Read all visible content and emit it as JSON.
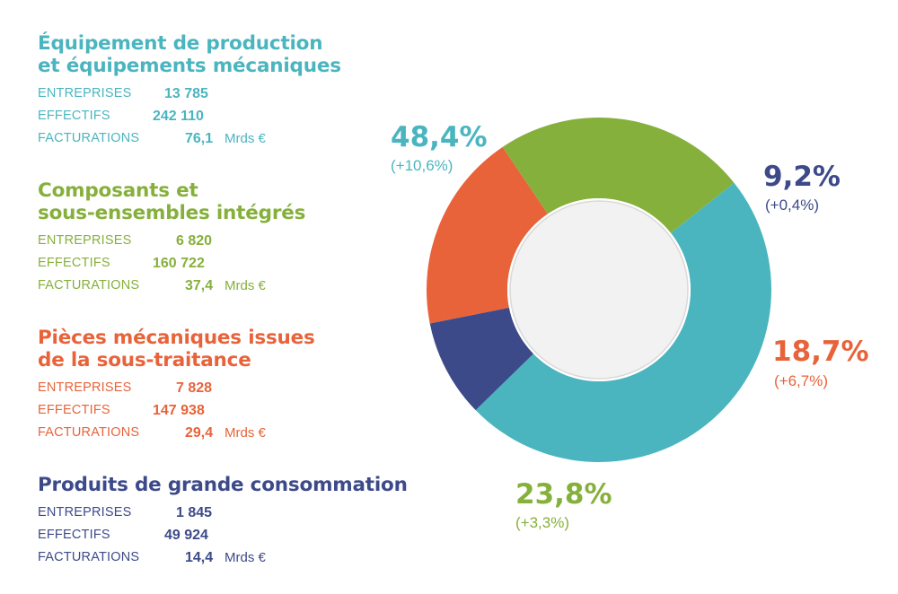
{
  "categories": [
    {
      "title_lines": [
        "Équipement de production",
        "et équipements mécaniques"
      ],
      "color": "#4bb5bf",
      "stats": [
        {
          "label": "ENTREPRISES",
          "value": "13 785"
        },
        {
          "label": "EFFECTIFS",
          "value": "242 110"
        },
        {
          "label": "FACTURATIONS",
          "value": "76,1",
          "unit": "Mrds €"
        }
      ]
    },
    {
      "title_lines": [
        "Composants et",
        "sous-ensembles intégrés"
      ],
      "color": "#86b03c",
      "stats": [
        {
          "label": "ENTREPRISES",
          "value": "6 820"
        },
        {
          "label": "EFFECTIFS",
          "value": "160 722"
        },
        {
          "label": "FACTURATIONS",
          "value": "37,4",
          "unit": "Mrds €"
        }
      ]
    },
    {
      "title_lines": [
        "Pièces mécaniques issues",
        "de la sous-traitance"
      ],
      "color": "#e8633a",
      "stats": [
        {
          "label": "ENTREPRISES",
          "value": "7 828"
        },
        {
          "label": "EFFECTIFS",
          "value": "147 938"
        },
        {
          "label": "FACTURATIONS",
          "value": "29,4",
          "unit": "Mrds €"
        }
      ]
    },
    {
      "title_lines": [
        "Produits de grande consommation"
      ],
      "color": "#3d4a8a",
      "stats": [
        {
          "label": "ENTREPRISES",
          "value": "1 845"
        },
        {
          "label": "EFFECTIFS",
          "value": "49 924"
        },
        {
          "label": "FACTURATIONS",
          "value": "14,4",
          "unit": "Mrds €"
        }
      ]
    }
  ],
  "chart_data": {
    "type": "pie",
    "style": "donut",
    "slices": [
      {
        "value": 48.4,
        "label": "48,4%",
        "change": "(+10,6%)",
        "color": "#4bb5bf"
      },
      {
        "value": 9.2,
        "label": "9,2%",
        "change": "(+0,4%)",
        "color": "#3d4a8a"
      },
      {
        "value": 18.7,
        "label": "18,7%",
        "change": "(+6,7%)",
        "color": "#e8633a"
      },
      {
        "value": 23.8,
        "label": "23,8%",
        "change": "(+3,3%)",
        "color": "#86b03c"
      }
    ],
    "center_fill": "#f2f2f2"
  }
}
